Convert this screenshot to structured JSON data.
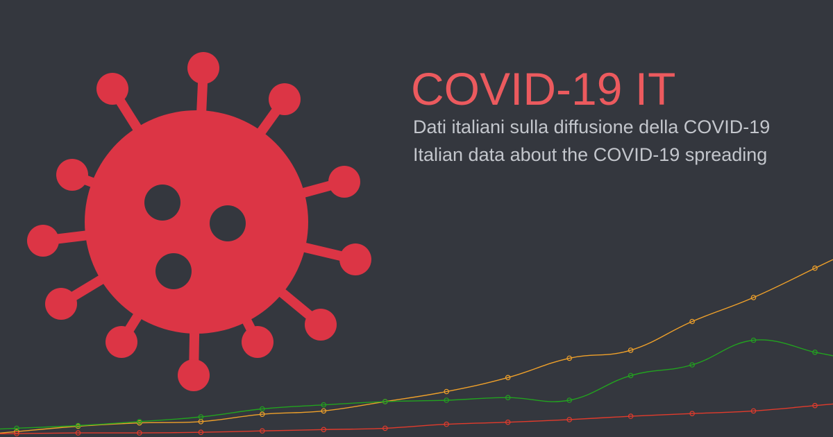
{
  "header": {
    "title": "COVID-19 IT",
    "subtitle_it": "Dati italiani sulla diffusione della COVID-19",
    "subtitle_en": "Italian data about the COVID-19 spreading"
  },
  "icon": {
    "name": "virus-icon",
    "color": "#dc3545"
  },
  "colors": {
    "background": "#34373e",
    "title": "#ec5a5e",
    "subtitle": "#c3c6cc"
  },
  "chart_data": {
    "type": "line",
    "grid": false,
    "legend": "none",
    "x": [
      0,
      1,
      2,
      3,
      4,
      5,
      6,
      7,
      8,
      9,
      10,
      11,
      12,
      13
    ],
    "ylim": [
      0,
      260
    ],
    "series": [
      {
        "color": "#f0a12a",
        "values": [
          5,
          13,
          18,
          20,
          31,
          36,
          50,
          65,
          86,
          115,
          127,
          170,
          206,
          250
        ]
      },
      {
        "color": "#22a31f",
        "values": [
          10,
          14,
          20,
          27,
          39,
          45,
          50,
          52,
          56,
          52,
          89,
          105,
          142,
          124
        ]
      },
      {
        "color": "#e23b2c",
        "values": [
          2,
          3,
          3,
          4,
          6,
          8,
          10,
          16,
          19,
          23,
          28,
          32,
          36,
          44
        ]
      }
    ]
  }
}
